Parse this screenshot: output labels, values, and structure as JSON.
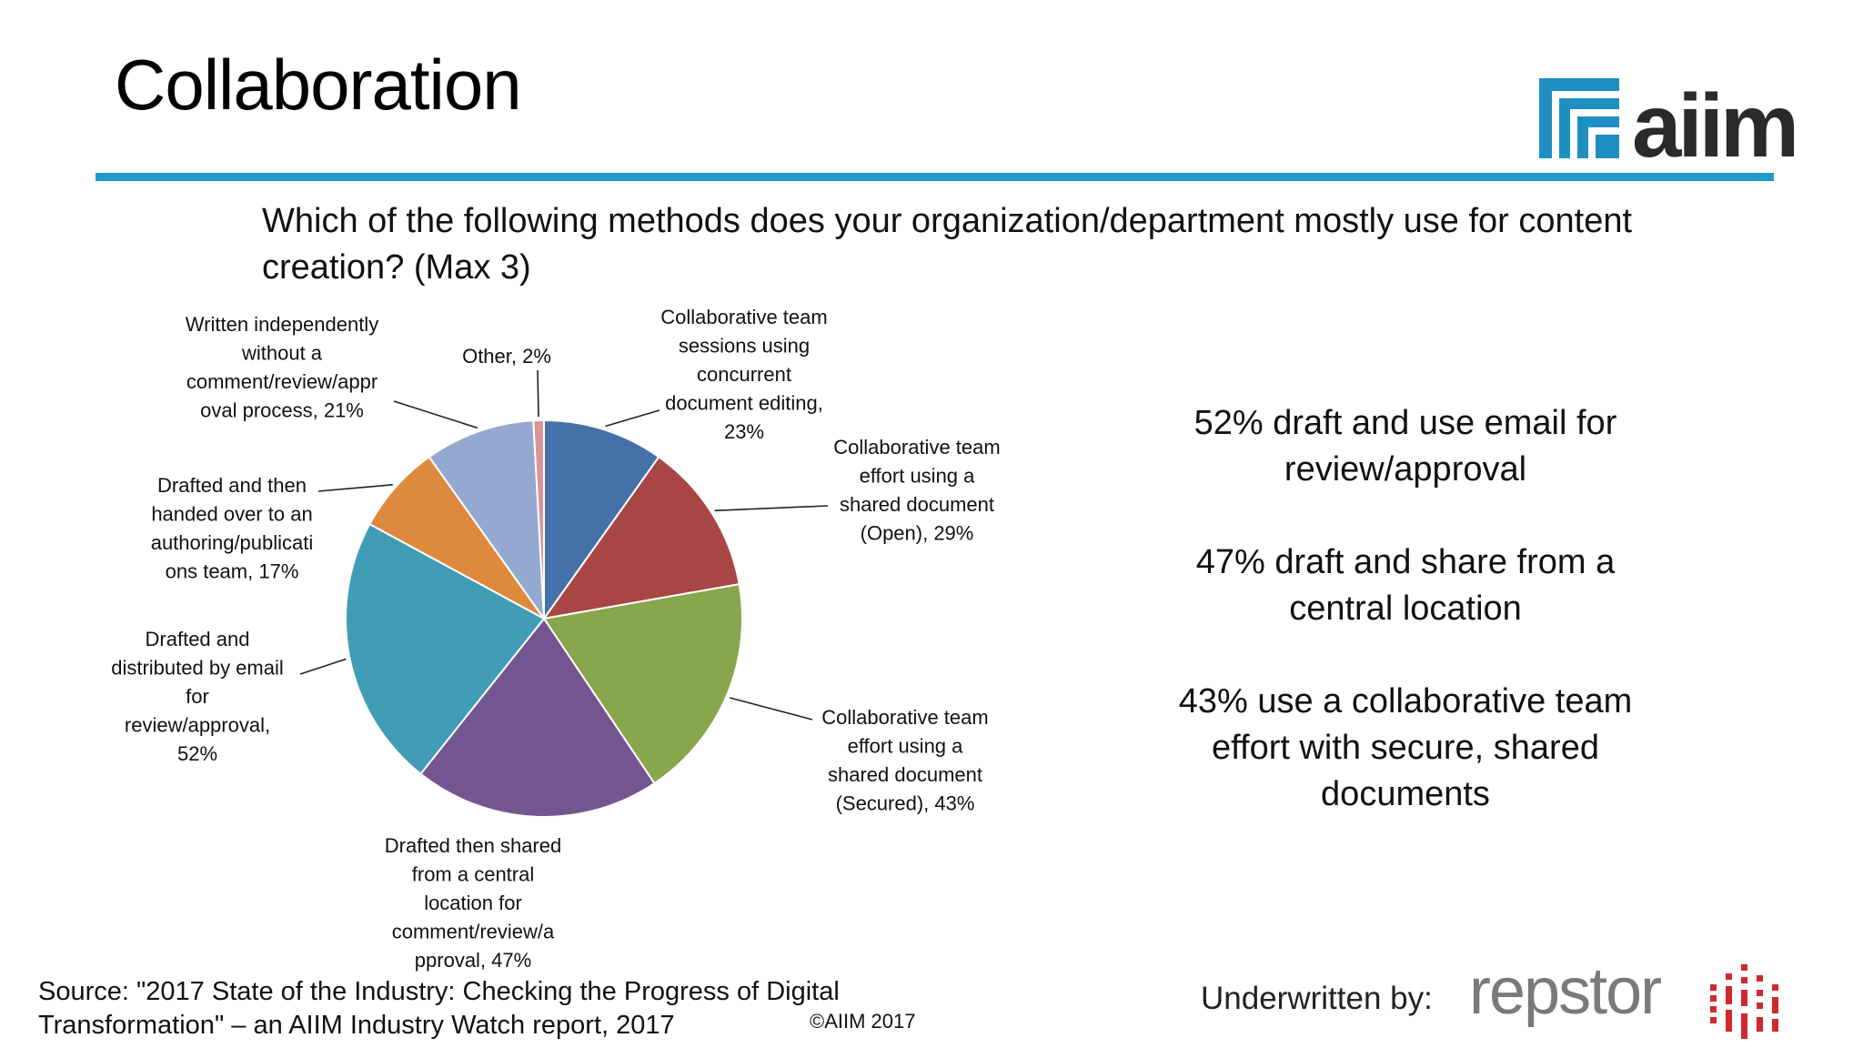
{
  "slide": {
    "title": "Collaboration",
    "accent_color": "#1e9bc9",
    "question": "Which of the following methods does your organization/department mostly use for content creation? (Max 3)"
  },
  "logo": {
    "text": "aiim",
    "icon": "aiim-mark-icon",
    "color": "#1e8fc0"
  },
  "chart_data": {
    "type": "pie",
    "title": "",
    "slices": [
      {
        "label": "Collaborative team sessions using concurrent document editing, 23%",
        "value": 23,
        "color": "#4472a8"
      },
      {
        "label": "Collaborative team effort using a shared document (Open), 29%",
        "value": 29,
        "color": "#a84646"
      },
      {
        "label": "Collaborative team effort using a shared document (Secured), 43%",
        "value": 43,
        "color": "#88a64c"
      },
      {
        "label": "Drafted then shared from a central location for comment/review/approval, 47%",
        "value": 47,
        "color": "#735690"
      },
      {
        "label": "Drafted and distributed by email for review/approval, 52%",
        "value": 52,
        "color": "#419cb6"
      },
      {
        "label": "Drafted and then handed over to an authoring/publications team, 17%",
        "value": 17,
        "color": "#de8a3e"
      },
      {
        "label": "Written independently without a comment/review/approval process, 21%",
        "value": 21,
        "color": "#94a9d0"
      },
      {
        "label": "Other, 2%",
        "value": 2,
        "color": "#dc9595"
      }
    ]
  },
  "takeaways": [
    "52% draft and use email for review/approval",
    "47% draft and share from a central location",
    "43% use a collaborative team effort with secure, shared documents"
  ],
  "footer": {
    "source": "Source: \"2017 State of the Industry: Checking the Progress of Digital Transformation\" – an AIIM Industry Watch report, 2017",
    "copyright": "©AIIM 2017",
    "underwritten_by": "Underwritten by:",
    "sponsor": "repstor",
    "sponsor_color": "#7a7a7a",
    "sponsor_accent": "#d0282e"
  }
}
